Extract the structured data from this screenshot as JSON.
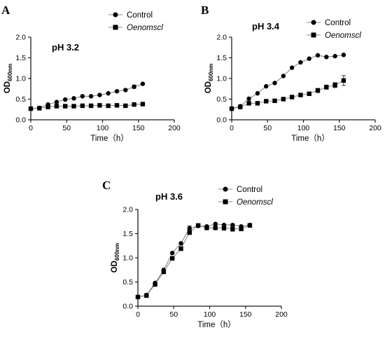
{
  "chart_data": [
    {
      "panel": "A",
      "type": "line",
      "title": "pH 3.2",
      "xlabel": "Time（h）",
      "ylabel_main": "OD",
      "ylabel_sub": "600nm",
      "xlim": [
        0,
        200
      ],
      "ylim": [
        0,
        2.0
      ],
      "xticks": [
        "0",
        "50",
        "100",
        "150",
        "200"
      ],
      "yticks": [
        "0.0",
        "0.5",
        "1.0",
        "1.5",
        "2.0"
      ],
      "grid": false,
      "legend": "top-right",
      "series": [
        {
          "name": "Control",
          "marker": "circle",
          "x": [
            0,
            12,
            24,
            36,
            48,
            60,
            72,
            84,
            96,
            108,
            120,
            132,
            144,
            156
          ],
          "y": [
            0.27,
            0.29,
            0.37,
            0.43,
            0.49,
            0.52,
            0.57,
            0.57,
            0.6,
            0.64,
            0.69,
            0.72,
            0.8,
            0.87
          ],
          "err": [
            0,
            0,
            0,
            0,
            0,
            0,
            0,
            0,
            0,
            0,
            0,
            0,
            0.04,
            0.02
          ]
        },
        {
          "name": "Oenomscl",
          "marker": "square",
          "x": [
            0,
            12,
            24,
            36,
            48,
            60,
            72,
            84,
            96,
            108,
            120,
            132,
            144,
            156
          ],
          "y": [
            0.27,
            0.28,
            0.31,
            0.33,
            0.33,
            0.33,
            0.34,
            0.34,
            0.35,
            0.34,
            0.35,
            0.34,
            0.37,
            0.38
          ],
          "err": [
            0,
            0,
            0,
            0,
            0,
            0,
            0,
            0,
            0,
            0,
            0,
            0,
            0,
            0
          ]
        }
      ]
    },
    {
      "panel": "B",
      "type": "line",
      "title": "pH 3.4",
      "xlabel": "Time（h）",
      "ylabel_main": "OD",
      "ylabel_sub": "600nm",
      "xlim": [
        0,
        200
      ],
      "ylim": [
        0,
        2.0
      ],
      "xticks": [
        "0",
        "50",
        "100",
        "150",
        "200"
      ],
      "yticks": [
        "0.0",
        "0.5",
        "1.0",
        "1.5",
        "2.0"
      ],
      "grid": false,
      "legend": "top-right",
      "series": [
        {
          "name": "Control",
          "marker": "circle",
          "x": [
            0,
            12,
            24,
            36,
            48,
            60,
            72,
            84,
            96,
            108,
            120,
            132,
            144,
            156
          ],
          "y": [
            0.27,
            0.33,
            0.51,
            0.64,
            0.81,
            0.89,
            1.06,
            1.26,
            1.39,
            1.48,
            1.56,
            1.52,
            1.54,
            1.57
          ],
          "err": [
            0,
            0,
            0,
            0,
            0,
            0,
            0,
            0,
            0,
            0,
            0,
            0,
            0,
            0
          ]
        },
        {
          "name": "Oenomscl",
          "marker": "square",
          "x": [
            0,
            12,
            24,
            36,
            48,
            60,
            72,
            84,
            96,
            108,
            120,
            132,
            144,
            156
          ],
          "y": [
            0.27,
            0.31,
            0.4,
            0.4,
            0.45,
            0.46,
            0.5,
            0.55,
            0.6,
            0.63,
            0.71,
            0.79,
            0.84,
            0.95
          ],
          "err": [
            0,
            0,
            0,
            0,
            0,
            0,
            0,
            0.03,
            0,
            0.03,
            0.05,
            0.05,
            0.06,
            0.12
          ]
        }
      ]
    },
    {
      "panel": "C",
      "type": "line",
      "title": "pH 3.6",
      "xlabel": "Time（h）",
      "ylabel_main": "OD",
      "ylabel_sub": "600nm",
      "xlim": [
        0,
        200
      ],
      "ylim": [
        0,
        2.0
      ],
      "xticks": [
        "0",
        "50",
        "100",
        "150",
        "200"
      ],
      "yticks": [
        "0.0",
        "0.5",
        "1.0",
        "1.5",
        "2.0"
      ],
      "grid": false,
      "legend": "top-right",
      "series": [
        {
          "name": "Control",
          "marker": "circle",
          "x": [
            0,
            12,
            24,
            36,
            48,
            60,
            72,
            84,
            96,
            108,
            120,
            132,
            144,
            156
          ],
          "y": [
            0.19,
            0.23,
            0.48,
            0.75,
            1.1,
            1.3,
            1.61,
            1.66,
            1.65,
            1.7,
            1.68,
            1.68,
            1.65,
            1.68
          ],
          "err": [
            0,
            0,
            0,
            0,
            0,
            0,
            0.05,
            0.03,
            0,
            0,
            0,
            0,
            0,
            0
          ]
        },
        {
          "name": "Oenomscl",
          "marker": "square",
          "x": [
            0,
            12,
            24,
            36,
            48,
            60,
            72,
            84,
            96,
            108,
            120,
            132,
            144,
            156
          ],
          "y": [
            0.19,
            0.22,
            0.45,
            0.71,
            0.99,
            1.19,
            1.53,
            1.67,
            1.62,
            1.62,
            1.62,
            1.6,
            1.6,
            1.67
          ],
          "err": [
            0,
            0,
            0,
            0,
            0,
            0.04,
            0.05,
            0.03,
            0.04,
            0.04,
            0.05,
            0.05,
            0.04,
            0
          ]
        }
      ]
    }
  ]
}
